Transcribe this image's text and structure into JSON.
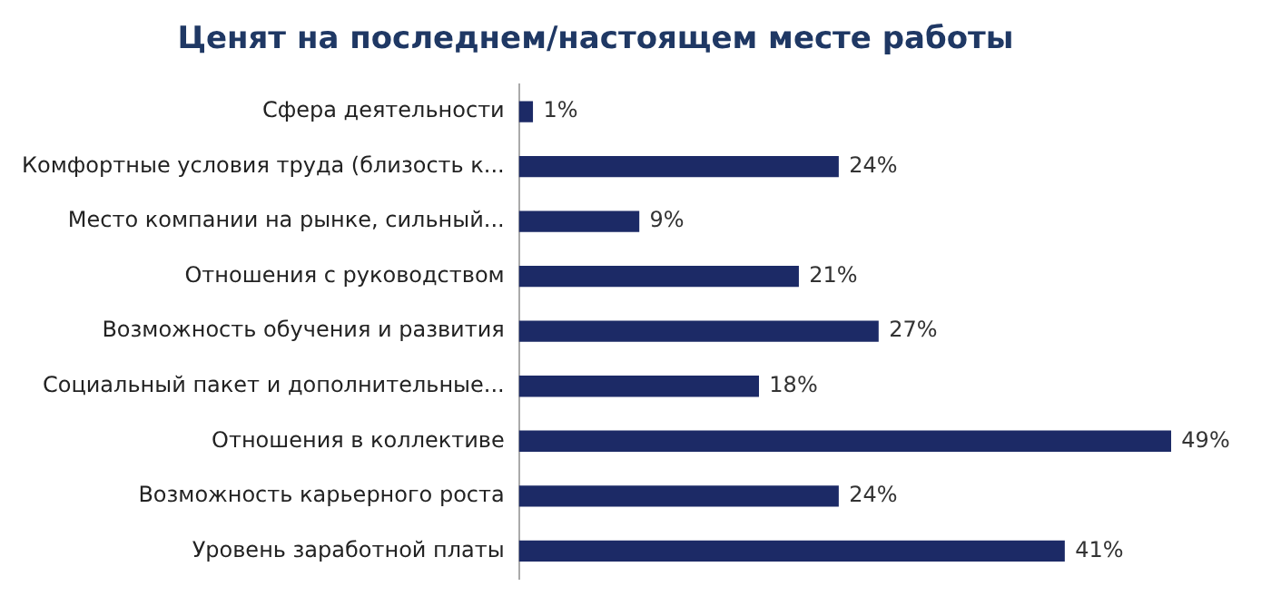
{
  "chart_data": {
    "type": "bar",
    "orientation": "horizontal",
    "title": "Ценят на последнем/настоящем месте работы",
    "categories": [
      "Сфера деятельности",
      "Комфортные условия труда (близость к...",
      "Место компании на рынке, сильный...",
      "Отношения с руководством",
      "Возможность обучения и развития",
      "Социальный пакет и дополнительные...",
      "Отношения в коллективе",
      "Возможность карьерного роста",
      "Уровень заработной платы"
    ],
    "values": [
      1,
      24,
      9,
      21,
      27,
      18,
      49,
      24,
      41
    ],
    "value_labels": [
      "1%",
      "24%",
      "9%",
      "21%",
      "27%",
      "18%",
      "49%",
      "24%",
      "41%"
    ],
    "color": "#1c2a66",
    "grid": false,
    "legend": false
  }
}
